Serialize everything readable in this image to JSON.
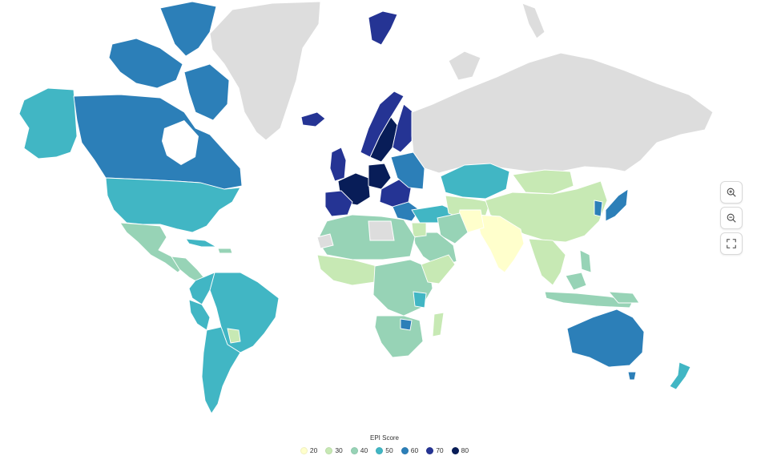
{
  "legend": {
    "title": "EPI Score",
    "items": [
      {
        "label": "20",
        "color": "#ffffcc"
      },
      {
        "label": "30",
        "color": "#c7e9b4"
      },
      {
        "label": "40",
        "color": "#97d3b6"
      },
      {
        "label": "50",
        "color": "#41b6c4"
      },
      {
        "label": "60",
        "color": "#2c7fb8"
      },
      {
        "label": "70",
        "color": "#253494"
      },
      {
        "label": "80",
        "color": "#081d58"
      }
    ]
  },
  "map_colors": {
    "no_data": "#dddddd"
  },
  "controls": {
    "zoom_in_icon": "zoom-in-icon",
    "zoom_out_icon": "zoom-out-icon",
    "fullscreen_icon": "fullscreen-icon"
  }
}
